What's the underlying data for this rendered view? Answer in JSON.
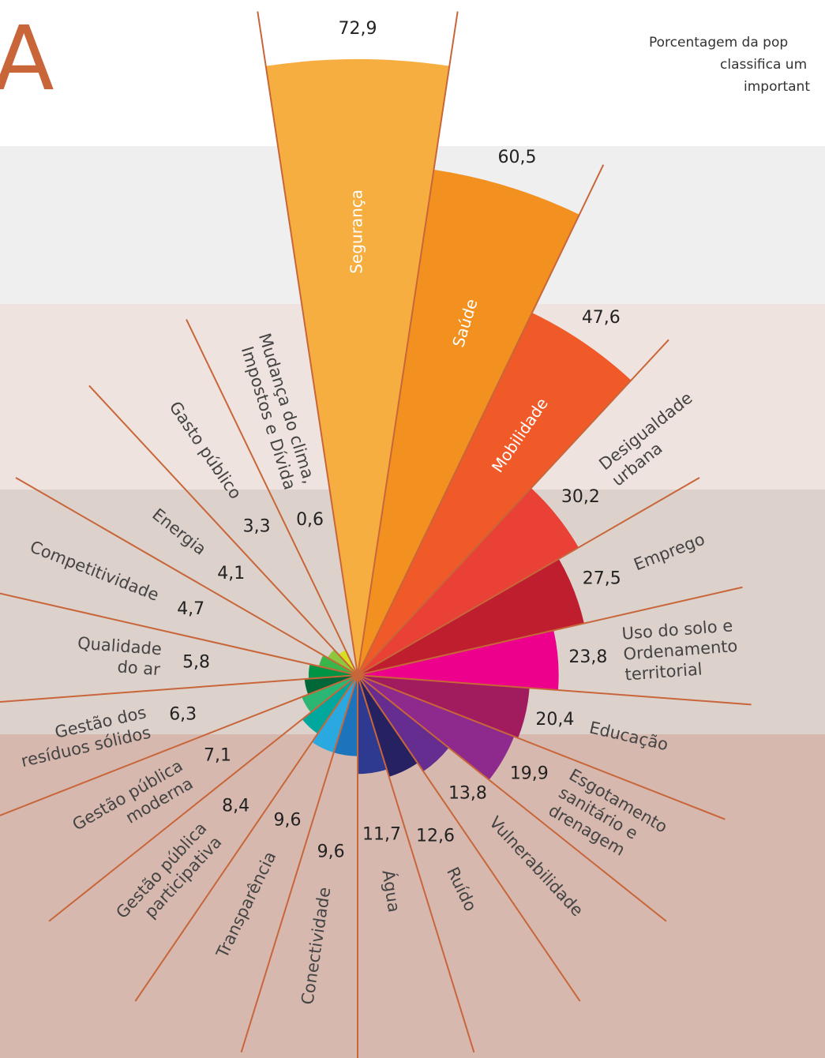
{
  "chart_data": {
    "type": "polar_area",
    "title": "A",
    "subtitle": [
      "Porcentagem da pop",
      "classifica um",
      "important"
    ],
    "categories": [
      [
        "Segurança"
      ],
      [
        "Saúde"
      ],
      [
        "Mobilidade"
      ],
      [
        "Desigualdade",
        "urbana"
      ],
      [
        "Emprego"
      ],
      [
        "Uso do solo e",
        "Ordenamento",
        "territorial"
      ],
      [
        "Educação"
      ],
      [
        "Esgotamento",
        "sanitário e",
        "drenagem"
      ],
      [
        "Vulnerabilidade"
      ],
      [
        "Ruído"
      ],
      [
        "Água"
      ],
      [
        "Conectividade"
      ],
      [
        "Transparência"
      ],
      [
        "Gestão pública",
        "participativa"
      ],
      [
        "Gestão pública",
        "moderna"
      ],
      [
        "Gestão dos",
        "resíduos sólidos"
      ],
      [
        "Qualidade",
        "do ar"
      ],
      [
        "Competitividade"
      ],
      [
        "Energia"
      ],
      [
        "Gasto público"
      ],
      [
        "Mudança do clima,",
        "Impostos e Dívida"
      ]
    ],
    "values": [
      72.9,
      60.5,
      47.6,
      30.2,
      27.5,
      23.8,
      20.4,
      19.9,
      13.8,
      12.6,
      11.7,
      9.6,
      9.6,
      8.4,
      7.1,
      6.3,
      5.8,
      4.7,
      4.1,
      3.3,
      0.6
    ],
    "value_labels": [
      "72,9",
      "60,5",
      "47,6",
      "30,2",
      "27,5",
      "23,8",
      "20,4",
      "19,9",
      "13,8",
      "12,6",
      "11,7",
      "9,6",
      "9,6",
      "8,4",
      "7,1",
      "6,3",
      "5,8",
      "4,7",
      "4,1",
      "3,3",
      "0,6"
    ],
    "colors": [
      "#f7ae40",
      "#f39120",
      "#ef5a28",
      "#e94136",
      "#be1e2d",
      "#ec008c",
      "#a01c5f",
      "#8e2a8e",
      "#662d91",
      "#262262",
      "#2e3a8f",
      "#1c75bc",
      "#29a9e0",
      "#00a79d",
      "#2bb673",
      "#006838",
      "#009444",
      "#39b54a",
      "#8dc63f",
      "#d7df23",
      "#f1e05a"
    ],
    "line_color": "#c8663a"
  }
}
